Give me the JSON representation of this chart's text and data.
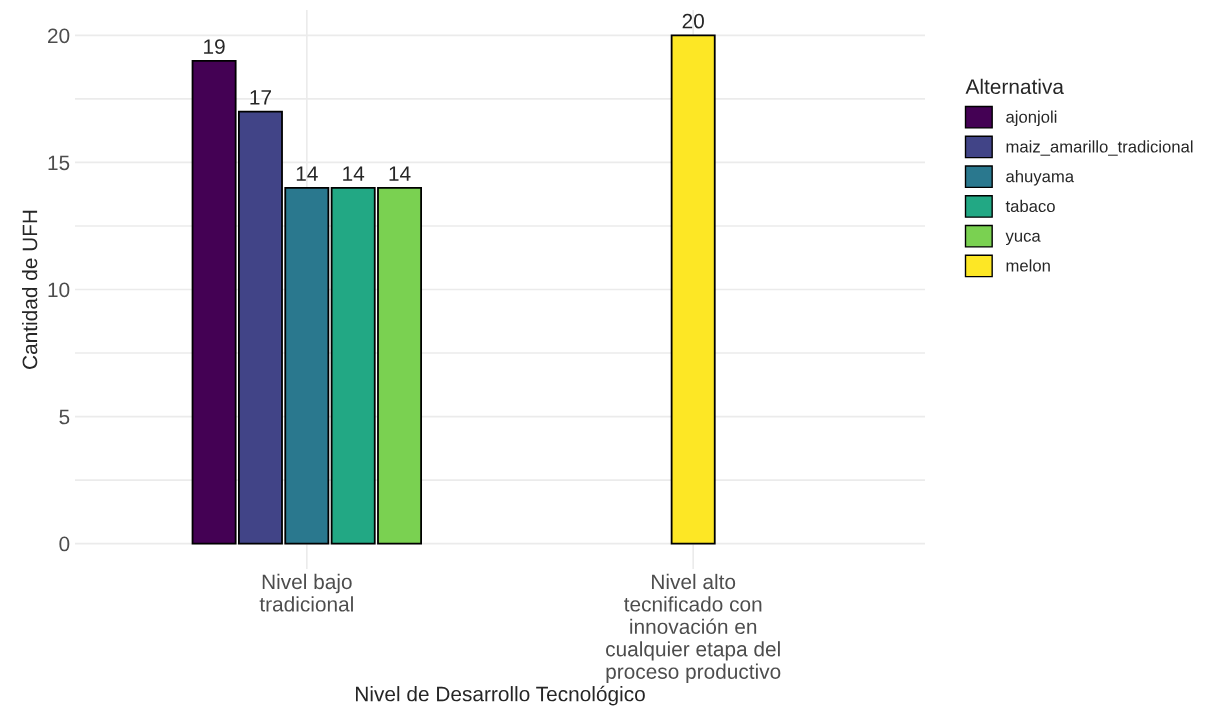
{
  "chart_data": {
    "type": "bar",
    "xlabel": "Nivel de Desarrollo Tecnológico",
    "ylabel": "Cantidad de UFH",
    "legend_title": "Alternativa",
    "categories": [
      "Nivel bajo\ntradicional",
      "Nivel alto\ntecnificado con\ninnovación en\ncualquier etapa del\nproceso productivo"
    ],
    "series": [
      {
        "name": "ajonjoli",
        "color": "#440154",
        "values": [
          19,
          null
        ]
      },
      {
        "name": "maiz_amarillo_tradicional",
        "color": "#414487",
        "values": [
          17,
          null
        ]
      },
      {
        "name": "ahuyama",
        "color": "#2a788e",
        "values": [
          14,
          null
        ]
      },
      {
        "name": "tabaco",
        "color": "#22a884",
        "values": [
          14,
          null
        ]
      },
      {
        "name": "yuca",
        "color": "#7ad151",
        "values": [
          14,
          null
        ]
      },
      {
        "name": "melon",
        "color": "#fde725",
        "values": [
          null,
          20
        ]
      }
    ],
    "ylim": [
      -1,
      21
    ],
    "yticks": [
      0,
      {
        "value": 2.5,
        "label": null
      },
      5,
      {
        "value": 7.5,
        "label": null
      },
      10,
      {
        "value": 12.5,
        "label": null
      },
      15,
      {
        "value": 17.5,
        "label": null
      },
      20
    ],
    "grid": true,
    "legend": "right",
    "data_labels": true
  }
}
